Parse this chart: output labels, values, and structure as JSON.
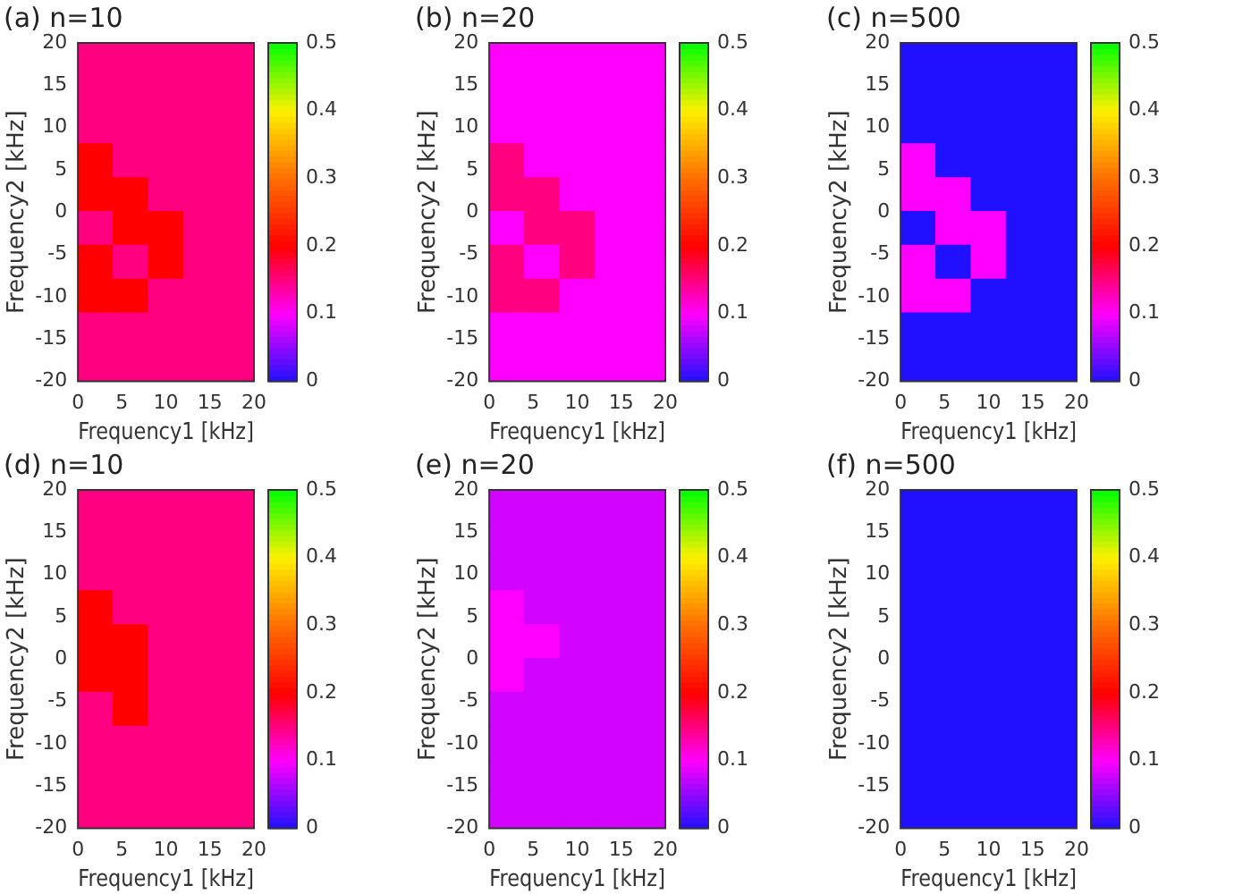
{
  "chart_data": [
    {
      "type": "scatter",
      "title": "(a) n=10",
      "xlabel": "Frequency1 [kHz]",
      "ylabel": "Frequency2 [kHz]",
      "marker": "square",
      "xlim": [
        0,
        20
      ],
      "xticks": [
        0,
        5,
        10,
        15,
        20
      ],
      "ylim": [
        -20,
        20
      ],
      "yticks": [
        -20,
        -15,
        -10,
        -5,
        0,
        5,
        10,
        15,
        20
      ],
      "clim": [
        0,
        0.5
      ],
      "cticks": [
        0,
        0.1,
        0.2,
        0.3,
        0.4,
        0.5
      ],
      "x": [
        2,
        6,
        10,
        14,
        18,
        2,
        6,
        10,
        14,
        18,
        2,
        6,
        10,
        14,
        18,
        2,
        6,
        10,
        14,
        18,
        2,
        6,
        10,
        14,
        18,
        2,
        6,
        10,
        14,
        18,
        2,
        6,
        10,
        14,
        18,
        2,
        6,
        10,
        14,
        18,
        2,
        6,
        10,
        14,
        18,
        2,
        6,
        10,
        14,
        18
      ],
      "values": [
        18,
        18,
        18,
        18,
        18,
        14,
        14,
        14,
        14,
        14,
        10,
        10,
        10,
        10,
        10,
        6,
        6,
        6,
        6,
        6,
        2,
        2,
        2,
        2,
        2,
        -2,
        -2,
        -2,
        -2,
        -2,
        -6,
        -6,
        -6,
        -6,
        -6,
        -10,
        -10,
        -10,
        -10,
        -10,
        -14,
        -14,
        -14,
        -14,
        -14,
        -18,
        -18,
        -18,
        -18,
        -18
      ],
      "cvalues": [
        0.15,
        0.15,
        0.15,
        0.15,
        0.15,
        0.15,
        0.15,
        0.15,
        0.15,
        0.15,
        0.15,
        0.15,
        0.15,
        0.15,
        0.15,
        0.2,
        0.15,
        0.15,
        0.15,
        0.15,
        0.2,
        0.2,
        0.15,
        0.15,
        0.15,
        0.15,
        0.2,
        0.2,
        0.15,
        0.15,
        0.2,
        0.15,
        0.2,
        0.15,
        0.15,
        0.2,
        0.2,
        0.15,
        0.15,
        0.15,
        0.15,
        0.15,
        0.15,
        0.15,
        0.15,
        0.15,
        0.15,
        0.15,
        0.15,
        0.15
      ]
    },
    {
      "type": "scatter",
      "title": "(b) n=20",
      "xlabel": "Frequency1 [kHz]",
      "ylabel": "Frequency2 [kHz]",
      "marker": "square",
      "xlim": [
        0,
        20
      ],
      "xticks": [
        0,
        5,
        10,
        15,
        20
      ],
      "ylim": [
        -20,
        20
      ],
      "yticks": [
        -20,
        -15,
        -10,
        -5,
        0,
        5,
        10,
        15,
        20
      ],
      "clim": [
        0,
        0.5
      ],
      "cticks": [
        0,
        0.1,
        0.2,
        0.3,
        0.4,
        0.5
      ],
      "x": [
        2,
        6,
        10,
        14,
        18,
        2,
        6,
        10,
        14,
        18,
        2,
        6,
        10,
        14,
        18,
        2,
        6,
        10,
        14,
        18,
        2,
        6,
        10,
        14,
        18,
        2,
        6,
        10,
        14,
        18,
        2,
        6,
        10,
        14,
        18,
        2,
        6,
        10,
        14,
        18,
        2,
        6,
        10,
        14,
        18,
        2,
        6,
        10,
        14,
        18
      ],
      "values": [
        18,
        18,
        18,
        18,
        18,
        14,
        14,
        14,
        14,
        14,
        10,
        10,
        10,
        10,
        10,
        6,
        6,
        6,
        6,
        6,
        2,
        2,
        2,
        2,
        2,
        -2,
        -2,
        -2,
        -2,
        -2,
        -6,
        -6,
        -6,
        -6,
        -6,
        -10,
        -10,
        -10,
        -10,
        -10,
        -14,
        -14,
        -14,
        -14,
        -14,
        -18,
        -18,
        -18,
        -18,
        -18
      ],
      "cvalues": [
        0.1,
        0.1,
        0.1,
        0.1,
        0.1,
        0.1,
        0.1,
        0.1,
        0.1,
        0.1,
        0.1,
        0.1,
        0.1,
        0.1,
        0.1,
        0.15,
        0.1,
        0.1,
        0.1,
        0.1,
        0.15,
        0.15,
        0.1,
        0.1,
        0.1,
        0.1,
        0.15,
        0.15,
        0.1,
        0.1,
        0.15,
        0.1,
        0.15,
        0.1,
        0.1,
        0.15,
        0.15,
        0.1,
        0.1,
        0.1,
        0.1,
        0.1,
        0.1,
        0.1,
        0.1,
        0.1,
        0.1,
        0.1,
        0.1,
        0.1
      ]
    },
    {
      "type": "scatter",
      "title": "(c) n=500",
      "xlabel": "Frequency1 [kHz]",
      "ylabel": "Frequency2 [kHz]",
      "marker": "square",
      "xlim": [
        0,
        20
      ],
      "xticks": [
        0,
        5,
        10,
        15,
        20
      ],
      "ylim": [
        -20,
        20
      ],
      "yticks": [
        -20,
        -15,
        -10,
        -5,
        0,
        5,
        10,
        15,
        20
      ],
      "clim": [
        0,
        0.5
      ],
      "cticks": [
        0,
        0.1,
        0.2,
        0.3,
        0.4,
        0.5
      ],
      "x": [
        2,
        6,
        10,
        14,
        18,
        2,
        6,
        10,
        14,
        18,
        2,
        6,
        10,
        14,
        18,
        2,
        6,
        10,
        14,
        18,
        2,
        6,
        10,
        14,
        18,
        2,
        6,
        10,
        14,
        18,
        2,
        6,
        10,
        14,
        18,
        2,
        6,
        10,
        14,
        18,
        2,
        6,
        10,
        14,
        18,
        2,
        6,
        10,
        14,
        18
      ],
      "values": [
        18,
        18,
        18,
        18,
        18,
        14,
        14,
        14,
        14,
        14,
        10,
        10,
        10,
        10,
        10,
        6,
        6,
        6,
        6,
        6,
        2,
        2,
        2,
        2,
        2,
        -2,
        -2,
        -2,
        -2,
        -2,
        -6,
        -6,
        -6,
        -6,
        -6,
        -10,
        -10,
        -10,
        -10,
        -10,
        -14,
        -14,
        -14,
        -14,
        -14,
        -18,
        -18,
        -18,
        -18,
        -18
      ],
      "cvalues": [
        0,
        0,
        0,
        0,
        0,
        0,
        0,
        0,
        0,
        0,
        0,
        0,
        0,
        0,
        0,
        0.1,
        0,
        0,
        0,
        0,
        0.1,
        0.1,
        0,
        0,
        0,
        0,
        0.1,
        0.1,
        0,
        0,
        0.1,
        0,
        0.1,
        0,
        0,
        0.1,
        0.1,
        0,
        0,
        0,
        0,
        0,
        0,
        0,
        0,
        0,
        0,
        0,
        0,
        0
      ]
    },
    {
      "type": "scatter",
      "title": "(d) n=10",
      "xlabel": "Frequency1 [kHz]",
      "ylabel": "Frequency2 [kHz]",
      "marker": "square",
      "xlim": [
        0,
        20
      ],
      "xticks": [
        0,
        5,
        10,
        15,
        20
      ],
      "ylim": [
        -20,
        20
      ],
      "yticks": [
        -20,
        -15,
        -10,
        -5,
        0,
        5,
        10,
        15,
        20
      ],
      "clim": [
        0,
        0.5
      ],
      "cticks": [
        0,
        0.1,
        0.2,
        0.3,
        0.4,
        0.5
      ],
      "x": [
        2,
        6,
        10,
        14,
        18,
        2,
        6,
        10,
        14,
        18,
        2,
        6,
        10,
        14,
        18,
        2,
        6,
        10,
        14,
        18,
        2,
        6,
        10,
        14,
        18,
        2,
        6,
        10,
        14,
        18,
        2,
        6,
        10,
        14,
        18,
        2,
        6,
        10,
        14,
        18,
        2,
        6,
        10,
        14,
        18,
        2,
        6,
        10,
        14,
        18
      ],
      "values": [
        18,
        18,
        18,
        18,
        18,
        14,
        14,
        14,
        14,
        14,
        10,
        10,
        10,
        10,
        10,
        6,
        6,
        6,
        6,
        6,
        2,
        2,
        2,
        2,
        2,
        -2,
        -2,
        -2,
        -2,
        -2,
        -6,
        -6,
        -6,
        -6,
        -6,
        -10,
        -10,
        -10,
        -10,
        -10,
        -14,
        -14,
        -14,
        -14,
        -14,
        -18,
        -18,
        -18,
        -18,
        -18
      ],
      "cvalues": [
        0.15,
        0.15,
        0.15,
        0.15,
        0.15,
        0.15,
        0.15,
        0.15,
        0.15,
        0.15,
        0.15,
        0.15,
        0.15,
        0.15,
        0.15,
        0.2,
        0.15,
        0.15,
        0.15,
        0.15,
        0.2,
        0.2,
        0.15,
        0.15,
        0.15,
        0.2,
        0.2,
        0.15,
        0.15,
        0.15,
        0.15,
        0.2,
        0.15,
        0.15,
        0.15,
        0.15,
        0.15,
        0.15,
        0.15,
        0.15,
        0.15,
        0.15,
        0.15,
        0.15,
        0.15,
        0.15,
        0.15,
        0.15,
        0.15,
        0.15
      ]
    },
    {
      "type": "scatter",
      "title": "(e) n=20",
      "xlabel": "Frequency1 [kHz]",
      "ylabel": "Frequency2 [kHz]",
      "marker": "square",
      "xlim": [
        0,
        20
      ],
      "xticks": [
        0,
        5,
        10,
        15,
        20
      ],
      "ylim": [
        -20,
        20
      ],
      "yticks": [
        -20,
        -15,
        -10,
        -5,
        0,
        5,
        10,
        15,
        20
      ],
      "clim": [
        0,
        0.5
      ],
      "cticks": [
        0,
        0.1,
        0.2,
        0.3,
        0.4,
        0.5
      ],
      "x": [
        2,
        6,
        10,
        14,
        18,
        2,
        6,
        10,
        14,
        18,
        2,
        6,
        10,
        14,
        18,
        2,
        6,
        10,
        14,
        18,
        2,
        6,
        10,
        14,
        18,
        2,
        6,
        10,
        14,
        18,
        2,
        6,
        10,
        14,
        18,
        2,
        6,
        10,
        14,
        18,
        2,
        6,
        10,
        14,
        18,
        2,
        6,
        10,
        14,
        18
      ],
      "values": [
        18,
        18,
        18,
        18,
        18,
        14,
        14,
        14,
        14,
        14,
        10,
        10,
        10,
        10,
        10,
        6,
        6,
        6,
        6,
        6,
        2,
        2,
        2,
        2,
        2,
        -2,
        -2,
        -2,
        -2,
        -2,
        -6,
        -6,
        -6,
        -6,
        -6,
        -10,
        -10,
        -10,
        -10,
        -10,
        -14,
        -14,
        -14,
        -14,
        -14,
        -18,
        -18,
        -18,
        -18,
        -18
      ],
      "cvalues": [
        0.08,
        0.08,
        0.08,
        0.08,
        0.08,
        0.08,
        0.08,
        0.08,
        0.08,
        0.08,
        0.08,
        0.08,
        0.08,
        0.08,
        0.08,
        0.1,
        0.08,
        0.08,
        0.08,
        0.08,
        0.1,
        0.1,
        0.08,
        0.08,
        0.08,
        0.1,
        0.08,
        0.08,
        0.08,
        0.08,
        0.08,
        0.08,
        0.08,
        0.08,
        0.08,
        0.08,
        0.08,
        0.08,
        0.08,
        0.08,
        0.08,
        0.08,
        0.08,
        0.08,
        0.08,
        0.08,
        0.08,
        0.08,
        0.08,
        0.08
      ]
    },
    {
      "type": "scatter",
      "title": "(f) n=500",
      "xlabel": "Frequency1 [kHz]",
      "ylabel": "Frequency2 [kHz]",
      "marker": "square",
      "xlim": [
        0,
        20
      ],
      "xticks": [
        0,
        5,
        10,
        15,
        20
      ],
      "ylim": [
        -20,
        20
      ],
      "yticks": [
        -20,
        -15,
        -10,
        -5,
        0,
        5,
        10,
        15,
        20
      ],
      "clim": [
        0,
        0.5
      ],
      "cticks": [
        0,
        0.1,
        0.2,
        0.3,
        0.4,
        0.5
      ],
      "x": [
        2,
        6,
        10,
        14,
        18,
        2,
        6,
        10,
        14,
        18,
        2,
        6,
        10,
        14,
        18,
        2,
        6,
        10,
        14,
        18,
        2,
        6,
        10,
        14,
        18,
        2,
        6,
        10,
        14,
        18,
        2,
        6,
        10,
        14,
        18,
        2,
        6,
        10,
        14,
        18,
        2,
        6,
        10,
        14,
        18,
        2,
        6,
        10,
        14,
        18
      ],
      "values": [
        18,
        18,
        18,
        18,
        18,
        14,
        14,
        14,
        14,
        14,
        10,
        10,
        10,
        10,
        10,
        6,
        6,
        6,
        6,
        6,
        2,
        2,
        2,
        2,
        2,
        -2,
        -2,
        -2,
        -2,
        -2,
        -6,
        -6,
        -6,
        -6,
        -6,
        -10,
        -10,
        -10,
        -10,
        -10,
        -14,
        -14,
        -14,
        -14,
        -14,
        -18,
        -18,
        -18,
        -18,
        -18
      ],
      "cvalues": [
        0,
        0,
        0,
        0,
        0,
        0,
        0,
        0,
        0,
        0,
        0,
        0,
        0,
        0,
        0,
        0,
        0,
        0,
        0,
        0,
        0,
        0,
        0,
        0,
        0,
        0,
        0,
        0,
        0,
        0,
        0,
        0,
        0,
        0,
        0,
        0,
        0,
        0,
        0,
        0,
        0,
        0,
        0,
        0,
        0,
        0,
        0,
        0,
        0,
        0
      ]
    }
  ]
}
